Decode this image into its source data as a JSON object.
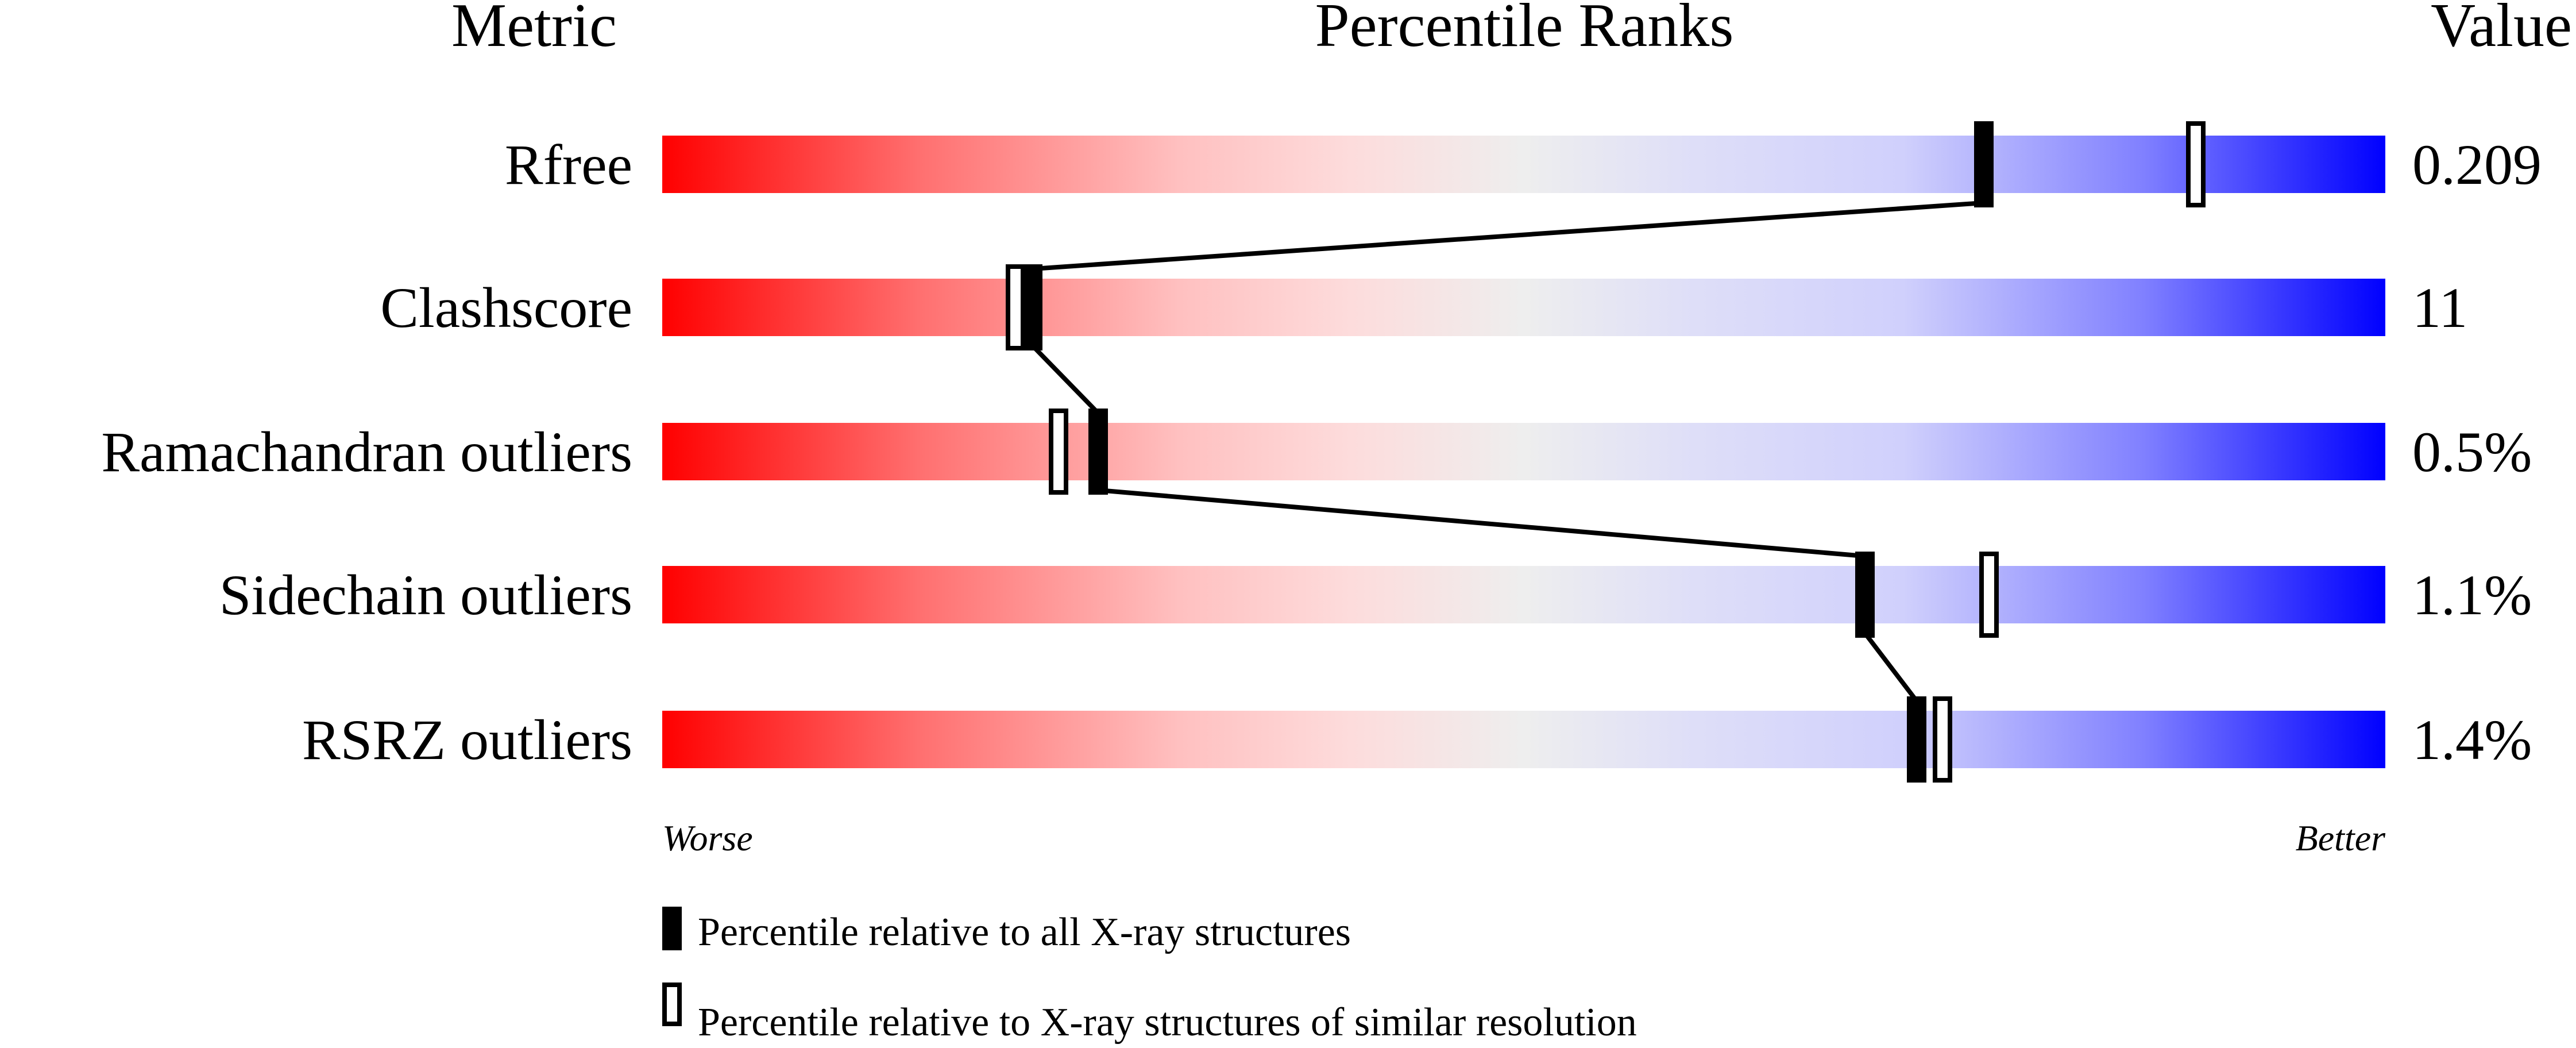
{
  "chart_data": {
    "type": "bar",
    "subtype": "percentile-slider",
    "headers": {
      "metric": "Metric",
      "ranks": "Percentile Ranks",
      "value": "Value"
    },
    "metrics": [
      {
        "name": "Rfree",
        "value": "0.209",
        "percentile_all": 76.7,
        "percentile_similar": 89.0
      },
      {
        "name": "Clashscore",
        "value": "11",
        "percentile_all": 21.5,
        "percentile_similar": 20.5
      },
      {
        "name": "Ramachandran outliers",
        "value": "0.5%",
        "percentile_all": 25.3,
        "percentile_similar": 23.0
      },
      {
        "name": "Sidechain outliers",
        "value": "1.1%",
        "percentile_all": 69.8,
        "percentile_similar": 77.0
      },
      {
        "name": "RSRZ outliers",
        "value": "1.4%",
        "percentile_all": 72.8,
        "percentile_similar": 74.3
      }
    ],
    "xlim": [
      0,
      100
    ],
    "axis_left_label": "Worse",
    "axis_right_label": "Better",
    "colors": {
      "worse": "#ff0000",
      "middle": "#eeeeee",
      "better": "#0000ff",
      "marker": "#000000"
    },
    "legend": [
      {
        "marker": "filled",
        "label": "Percentile relative to all X-ray structures"
      },
      {
        "marker": "hollow",
        "label": "Percentile relative to X-ray structures of similar resolution"
      }
    ]
  }
}
